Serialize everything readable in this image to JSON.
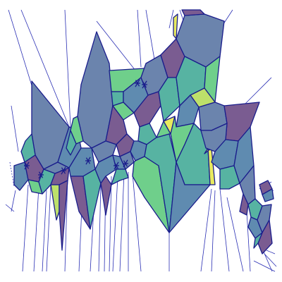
{
  "figure": {
    "background": "#ffffff",
    "edge_color": "#1a1d8c",
    "ray_color": "#2a2fb4",
    "palette": {
      "purple": "#7a5c91",
      "slate": "#6b84ad",
      "blue": "#5f8bb0",
      "teal": "#57b3a2",
      "green": "#6fcf8b",
      "lime": "#bde06a",
      "yellow": "#e8ea5e"
    }
  }
}
